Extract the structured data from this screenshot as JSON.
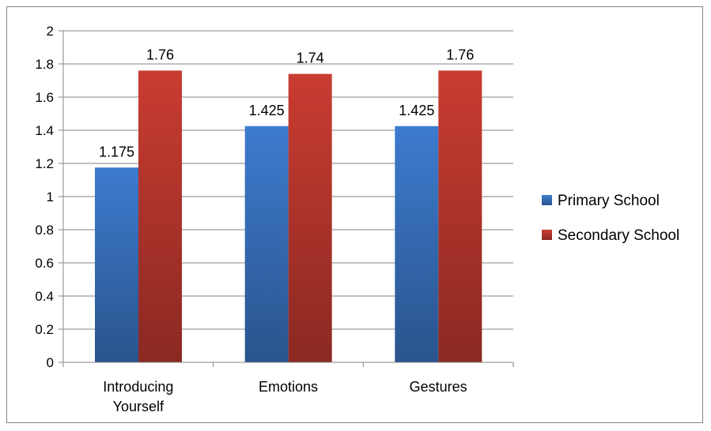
{
  "chart_data": {
    "type": "bar",
    "title": "",
    "xlabel": "",
    "ylabel": "",
    "categories": [
      "Introducing Yourself",
      "Emotions",
      "Gestures"
    ],
    "series": [
      {
        "name": "Primary School",
        "values": [
          1.175,
          1.425,
          1.425
        ],
        "labels": [
          "1.175",
          "1.425",
          "1.425"
        ],
        "color": "#3A75C4"
      },
      {
        "name": "Secondary School",
        "values": [
          1.76,
          1.74,
          1.76
        ],
        "labels": [
          "1.76",
          "1.74",
          "1.76"
        ],
        "color": "#C0392F"
      }
    ],
    "ylim": [
      0,
      2
    ],
    "yticks": [
      0,
      0.2,
      0.4,
      0.6,
      0.8,
      1,
      1.2,
      1.4,
      1.6,
      1.8,
      2
    ],
    "ytick_labels": [
      "0",
      "0.2",
      "0.4",
      "0.6",
      "0.8",
      "1",
      "1.2",
      "1.4",
      "1.6",
      "1.8",
      "2"
    ],
    "grid": true,
    "legend_position": "right",
    "gridline_color": "#868686"
  }
}
